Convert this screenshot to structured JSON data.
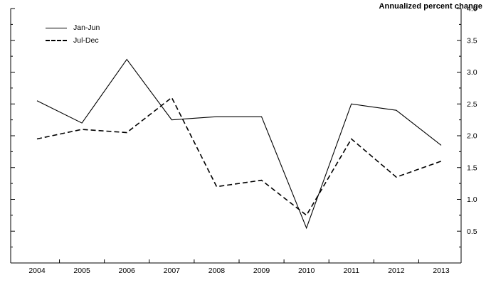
{
  "chart_data": {
    "type": "line",
    "title": "",
    "ylabel": "Annualized percent change",
    "xlabel": "",
    "x": [
      "2004",
      "2005",
      "2006",
      "2007",
      "2008",
      "2009",
      "2010",
      "2011",
      "2012",
      "2013"
    ],
    "series": [
      {
        "name": "Jan-Jun",
        "style": "solid",
        "values": [
          2.55,
          2.2,
          3.2,
          2.25,
          2.3,
          2.3,
          0.55,
          2.5,
          2.4,
          1.85
        ]
      },
      {
        "name": "Jul-Dec",
        "style": "dashed",
        "values": [
          1.95,
          2.1,
          2.05,
          2.6,
          1.2,
          1.3,
          0.75,
          1.95,
          1.35,
          1.6
        ]
      }
    ],
    "ylim": [
      0,
      4.0
    ],
    "ytick_labels": [
      "0.5",
      "1.0",
      "1.5",
      "2.0",
      "2.5",
      "3.0",
      "3.5",
      "4.0"
    ],
    "ytick_step": 0.5,
    "ytick_minor_step": 0.25,
    "line_color": "#000000",
    "grid": false,
    "legend_position": "top-left",
    "yaxis_side": "right"
  }
}
